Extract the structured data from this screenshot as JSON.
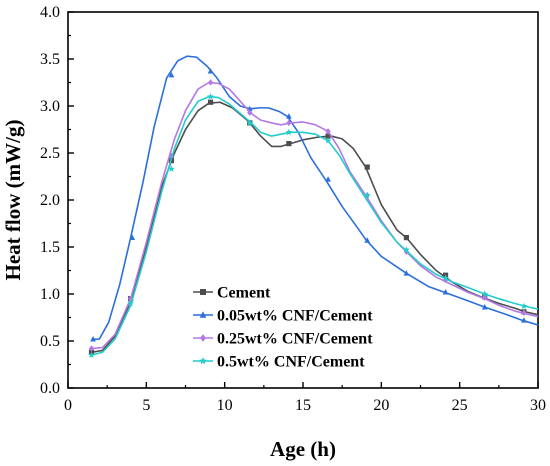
{
  "chart_data": {
    "type": "line",
    "title": "",
    "xlabel": "Age (h)",
    "ylabel": "Heat flow (mW/g)",
    "xlim": [
      0,
      30
    ],
    "ylim": [
      0.0,
      4.0
    ],
    "xticks": [
      0,
      5,
      10,
      15,
      20,
      25,
      30
    ],
    "yticks": [
      0.0,
      0.5,
      1.0,
      1.5,
      2.0,
      2.5,
      3.0,
      3.5,
      4.0
    ],
    "xtick_labels": [
      "0",
      "5",
      "10",
      "15",
      "20",
      "25",
      "30"
    ],
    "ytick_labels": [
      "0.0",
      "0.5",
      "1.0",
      "1.5",
      "2.0",
      "2.5",
      "3.0",
      "3.5",
      "4.0"
    ],
    "grid": false,
    "legend_position": "lower-left",
    "series": [
      {
        "name": "Cement",
        "color": "#4d4d4d",
        "marker": "square",
        "curve": [
          [
            1.5,
            0.38
          ],
          [
            2.2,
            0.4
          ],
          [
            3.0,
            0.55
          ],
          [
            4.0,
            0.92
          ],
          [
            5.0,
            1.5
          ],
          [
            6.0,
            2.15
          ],
          [
            6.8,
            2.5
          ],
          [
            7.5,
            2.75
          ],
          [
            8.3,
            2.95
          ],
          [
            9.0,
            3.03
          ],
          [
            9.7,
            3.04
          ],
          [
            10.5,
            2.98
          ],
          [
            11.5,
            2.84
          ],
          [
            12.3,
            2.68
          ],
          [
            13.0,
            2.57
          ],
          [
            13.6,
            2.57
          ],
          [
            14.2,
            2.6
          ],
          [
            15.0,
            2.64
          ],
          [
            16.0,
            2.67
          ],
          [
            16.8,
            2.68
          ],
          [
            17.5,
            2.65
          ],
          [
            18.2,
            2.55
          ],
          [
            19.0,
            2.35
          ],
          [
            20.0,
            1.95
          ],
          [
            21.0,
            1.68
          ],
          [
            21.6,
            1.6
          ],
          [
            22.5,
            1.42
          ],
          [
            23.5,
            1.25
          ],
          [
            24.5,
            1.13
          ],
          [
            25.5,
            1.03
          ],
          [
            26.5,
            0.96
          ],
          [
            27.5,
            0.9
          ],
          [
            28.5,
            0.85
          ],
          [
            29.2,
            0.81
          ],
          [
            30.0,
            0.78
          ]
        ],
        "markers": [
          [
            1.5,
            0.38
          ],
          [
            4.0,
            0.95
          ],
          [
            6.6,
            2.42
          ],
          [
            9.1,
            3.04
          ],
          [
            11.6,
            2.82
          ],
          [
            14.1,
            2.6
          ],
          [
            16.6,
            2.68
          ],
          [
            19.1,
            2.35
          ],
          [
            21.6,
            1.6
          ],
          [
            24.1,
            1.2
          ],
          [
            26.6,
            0.97
          ],
          [
            29.1,
            0.81
          ]
        ]
      },
      {
        "name": "0.05wt% CNF/Cement",
        "color": "#2b6fdc",
        "marker": "triangle",
        "curve": [
          [
            1.5,
            0.52
          ],
          [
            2.0,
            0.52
          ],
          [
            2.6,
            0.7
          ],
          [
            3.3,
            1.1
          ],
          [
            4.0,
            1.6
          ],
          [
            4.8,
            2.2
          ],
          [
            5.5,
            2.78
          ],
          [
            6.3,
            3.3
          ],
          [
            7.0,
            3.48
          ],
          [
            7.6,
            3.53
          ],
          [
            8.2,
            3.52
          ],
          [
            8.9,
            3.42
          ],
          [
            9.5,
            3.3
          ],
          [
            10.3,
            3.1
          ],
          [
            11.0,
            3.0
          ],
          [
            11.6,
            2.97
          ],
          [
            12.2,
            2.98
          ],
          [
            12.8,
            2.98
          ],
          [
            13.5,
            2.94
          ],
          [
            14.0,
            2.89
          ],
          [
            14.7,
            2.72
          ],
          [
            15.5,
            2.45
          ],
          [
            16.5,
            2.2
          ],
          [
            17.5,
            1.93
          ],
          [
            18.5,
            1.7
          ],
          [
            19.0,
            1.58
          ],
          [
            20.0,
            1.4
          ],
          [
            21.6,
            1.22
          ],
          [
            23.0,
            1.08
          ],
          [
            24.0,
            1.02
          ],
          [
            25.5,
            0.93
          ],
          [
            26.6,
            0.86
          ],
          [
            28.0,
            0.78
          ],
          [
            29.0,
            0.72
          ],
          [
            30.0,
            0.67
          ]
        ],
        "markers": [
          [
            1.6,
            0.52
          ],
          [
            4.1,
            1.6
          ],
          [
            6.6,
            3.33
          ],
          [
            9.1,
            3.37
          ],
          [
            11.6,
            2.97
          ],
          [
            14.1,
            2.89
          ],
          [
            16.6,
            2.22
          ],
          [
            19.1,
            1.57
          ],
          [
            21.6,
            1.22
          ],
          [
            24.1,
            1.02
          ],
          [
            26.6,
            0.86
          ],
          [
            29.1,
            0.72
          ]
        ]
      },
      {
        "name": "0.25wt% CNF/Cement",
        "color": "#b478e6",
        "marker": "diamond",
        "curve": [
          [
            1.5,
            0.42
          ],
          [
            2.2,
            0.43
          ],
          [
            3.0,
            0.57
          ],
          [
            4.0,
            0.95
          ],
          [
            5.0,
            1.55
          ],
          [
            6.0,
            2.2
          ],
          [
            6.8,
            2.65
          ],
          [
            7.5,
            2.95
          ],
          [
            8.3,
            3.18
          ],
          [
            9.0,
            3.25
          ],
          [
            9.6,
            3.24
          ],
          [
            10.3,
            3.18
          ],
          [
            11.0,
            3.05
          ],
          [
            11.7,
            2.92
          ],
          [
            12.3,
            2.85
          ],
          [
            13.0,
            2.82
          ],
          [
            13.6,
            2.8
          ],
          [
            14.2,
            2.82
          ],
          [
            15.0,
            2.83
          ],
          [
            15.8,
            2.8
          ],
          [
            16.6,
            2.73
          ],
          [
            17.3,
            2.55
          ],
          [
            18.0,
            2.3
          ],
          [
            19.0,
            2.05
          ],
          [
            20.0,
            1.78
          ],
          [
            21.0,
            1.55
          ],
          [
            21.6,
            1.45
          ],
          [
            22.5,
            1.3
          ],
          [
            23.5,
            1.18
          ],
          [
            24.5,
            1.1
          ],
          [
            25.5,
            1.02
          ],
          [
            26.6,
            0.95
          ],
          [
            27.5,
            0.88
          ],
          [
            28.5,
            0.82
          ],
          [
            29.2,
            0.79
          ],
          [
            30.0,
            0.76
          ]
        ],
        "markers": [
          [
            1.5,
            0.42
          ],
          [
            4.0,
            0.95
          ],
          [
            6.6,
            2.47
          ],
          [
            9.1,
            3.25
          ],
          [
            11.6,
            2.93
          ],
          [
            14.1,
            2.82
          ],
          [
            16.6,
            2.73
          ],
          [
            19.1,
            2.05
          ],
          [
            21.6,
            1.45
          ],
          [
            24.1,
            1.15
          ],
          [
            26.6,
            0.96
          ],
          [
            29.1,
            0.8
          ]
        ]
      },
      {
        "name": "0.5wt% CNF/Cement",
        "color": "#23cccc",
        "marker": "star",
        "curve": [
          [
            1.5,
            0.35
          ],
          [
            2.2,
            0.38
          ],
          [
            3.0,
            0.52
          ],
          [
            4.0,
            0.88
          ],
          [
            5.0,
            1.45
          ],
          [
            6.0,
            2.1
          ],
          [
            6.8,
            2.55
          ],
          [
            7.5,
            2.85
          ],
          [
            8.3,
            3.05
          ],
          [
            9.0,
            3.1
          ],
          [
            9.6,
            3.09
          ],
          [
            10.3,
            3.02
          ],
          [
            11.0,
            2.92
          ],
          [
            11.7,
            2.82
          ],
          [
            12.3,
            2.72
          ],
          [
            13.0,
            2.68
          ],
          [
            13.6,
            2.7
          ],
          [
            14.2,
            2.72
          ],
          [
            15.0,
            2.72
          ],
          [
            15.8,
            2.7
          ],
          [
            16.6,
            2.63
          ],
          [
            17.3,
            2.48
          ],
          [
            18.0,
            2.28
          ],
          [
            19.0,
            2.02
          ],
          [
            20.0,
            1.76
          ],
          [
            21.0,
            1.55
          ],
          [
            21.6,
            1.46
          ],
          [
            22.5,
            1.32
          ],
          [
            23.5,
            1.21
          ],
          [
            24.5,
            1.13
          ],
          [
            25.5,
            1.07
          ],
          [
            26.6,
            1.0
          ],
          [
            27.5,
            0.95
          ],
          [
            28.5,
            0.9
          ],
          [
            29.2,
            0.87
          ],
          [
            30.0,
            0.84
          ]
        ],
        "markers": [
          [
            1.5,
            0.35
          ],
          [
            4.0,
            0.9
          ],
          [
            6.6,
            2.33
          ],
          [
            9.1,
            3.1
          ],
          [
            11.6,
            2.82
          ],
          [
            14.1,
            2.72
          ],
          [
            16.6,
            2.63
          ],
          [
            19.1,
            2.05
          ],
          [
            21.6,
            1.47
          ],
          [
            24.1,
            1.17
          ],
          [
            26.6,
            1.0
          ],
          [
            29.1,
            0.87
          ]
        ]
      }
    ]
  }
}
